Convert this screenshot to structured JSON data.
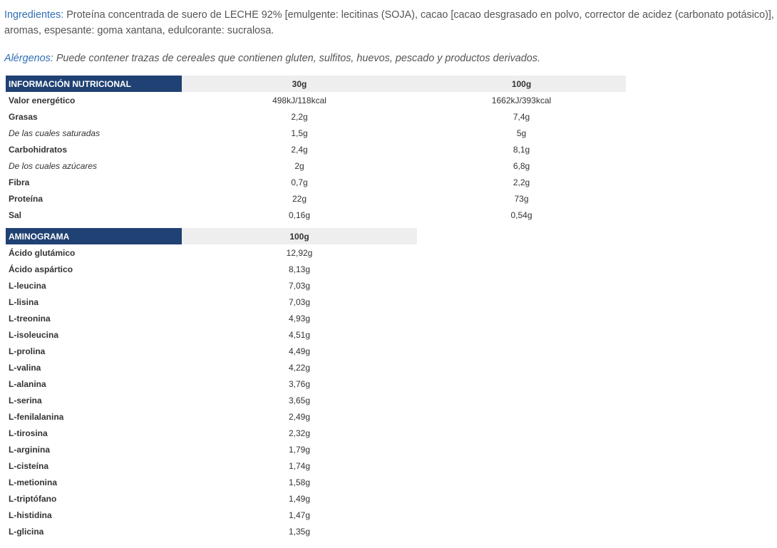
{
  "ingredients": {
    "label": "Ingredientes:",
    "text": "Proteína concentrada de suero de LECHE 92% [emulgente: lecitinas (SOJA), cacao [cacao desgrasado en polvo, corrector de acidez (carbonato potásico)], aromas, espesante: goma xantana, edulcorante: sucralosa."
  },
  "allergens": {
    "label": "Alérgenos:",
    "text": "Puede contener trazas de cereales que contienen gluten, sulfitos, huevos, pescado y productos derivados."
  },
  "nutrition_table": {
    "headers": [
      "INFORMACIÓN NUTRICIONAL",
      "30g",
      "100g"
    ],
    "rows": [
      [
        "Valor energético",
        "498kJ/118kcal",
        "1662kJ/393kcal"
      ],
      [
        "Grasas",
        "2,2g",
        "7,4g"
      ],
      [
        "De las cuales saturadas",
        "1,5g",
        "5g"
      ],
      [
        "Carbohidratos",
        "2,4g",
        "8,1g"
      ],
      [
        "De los cuales azúcares",
        "2g",
        "6,8g"
      ],
      [
        "Fibra",
        "0,7g",
        "2,2g"
      ],
      [
        "Proteína",
        "22g",
        "73g"
      ],
      [
        "Sal",
        "0,16g",
        "0,54g"
      ]
    ]
  },
  "amino_table": {
    "headers": [
      "AMINOGRAMA",
      "100g"
    ],
    "rows": [
      [
        "Ácido glutámico",
        "12,92g"
      ],
      [
        "Ácido aspártico",
        "8,13g"
      ],
      [
        "L-leucina",
        "7,03g"
      ],
      [
        "L-lisina",
        "7,03g"
      ],
      [
        "L-treonina",
        "4,93g"
      ],
      [
        "L-isoleucina",
        "4,51g"
      ],
      [
        "L-prolina",
        "4,49g"
      ],
      [
        "L-valina",
        "4,22g"
      ],
      [
        "L-alanina",
        "3,76g"
      ],
      [
        "L-serina",
        "3,65g"
      ],
      [
        "L-fenilalanina",
        "2,49g"
      ],
      [
        "L-tirosina",
        "2,32g"
      ],
      [
        "L-arginina",
        "1,79g"
      ],
      [
        "L-cisteína",
        "1,74g"
      ],
      [
        "L-metionina",
        "1,58g"
      ],
      [
        "L-triptófano",
        "1,49g"
      ],
      [
        "L-histidina",
        "1,47g"
      ],
      [
        "L-glicina",
        "1,35g"
      ]
    ]
  }
}
